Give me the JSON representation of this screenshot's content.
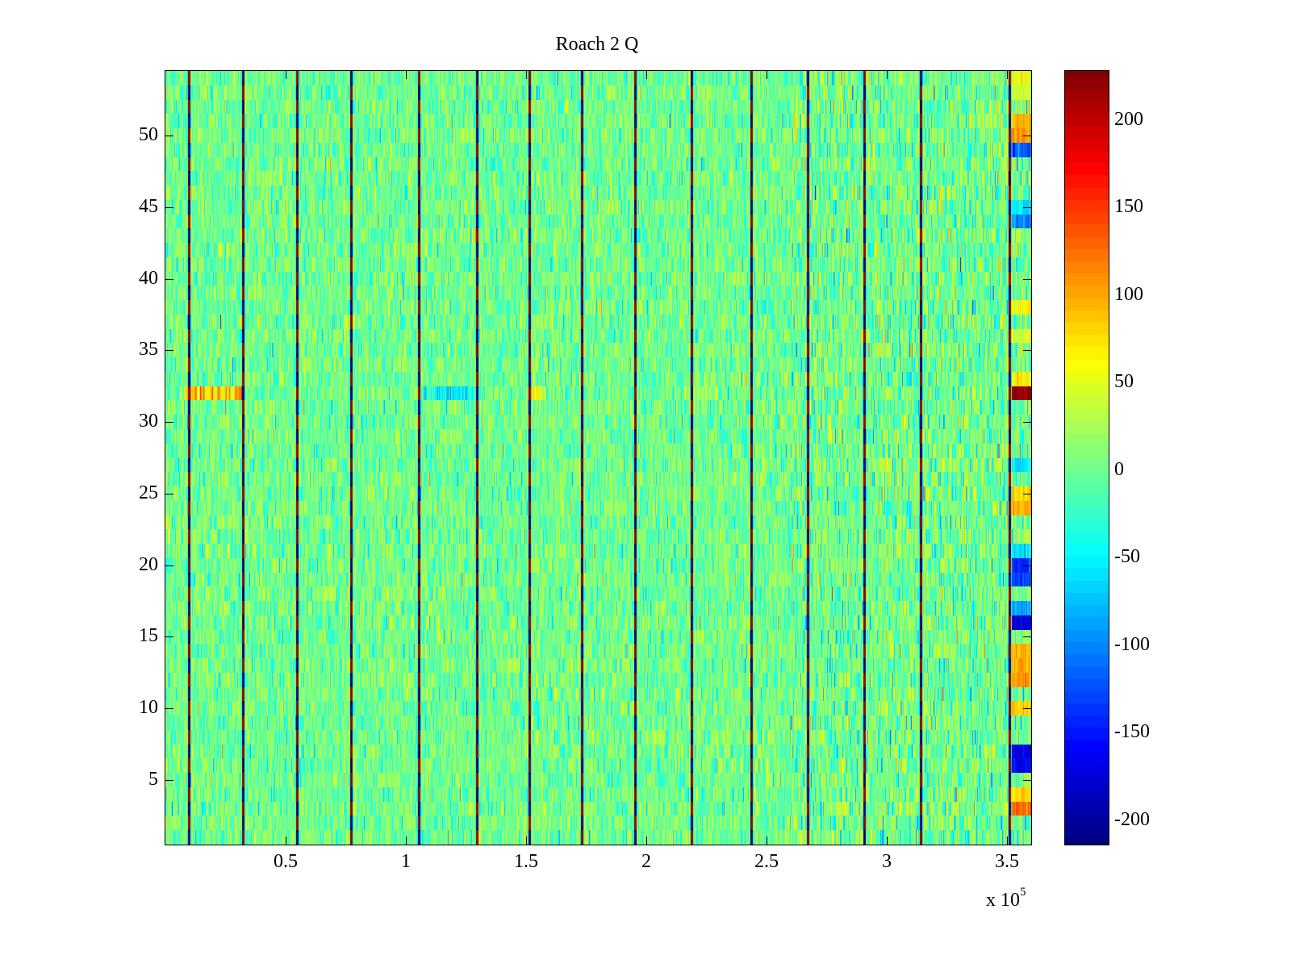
{
  "chart_data": {
    "type": "heatmap",
    "title": "Roach 2 Q",
    "xlabel": "",
    "ylabel": "",
    "x_multiplier_label": "x 10",
    "x_multiplier_exponent": "5",
    "xlim": [
      0,
      360000
    ],
    "ylim": [
      0.5,
      54.5
    ],
    "rows": 54,
    "columns": 1073,
    "x_ticks": [
      50000,
      100000,
      150000,
      200000,
      250000,
      300000,
      350000
    ],
    "x_tick_labels": [
      "0.5",
      "1",
      "1.5",
      "2",
      "2.5",
      "3",
      "3.5"
    ],
    "y_ticks": [
      5,
      10,
      15,
      20,
      25,
      30,
      35,
      40,
      45,
      50
    ],
    "y_tick_labels": [
      "5",
      "10",
      "15",
      "20",
      "25",
      "30",
      "35",
      "40",
      "45",
      "50"
    ],
    "colorbar": {
      "colormap": "jet",
      "levels": 64,
      "clim": [
        -214,
        228
      ],
      "ticks": [
        -200,
        -150,
        -100,
        -50,
        0,
        50,
        100,
        150,
        200
      ],
      "tick_labels": [
        "-200",
        "-150",
        "-100",
        "-50",
        "0",
        "50",
        "100",
        "150",
        "200"
      ]
    },
    "background_noise": {
      "mean": 0,
      "std": 28
    },
    "stripes": {
      "x": [
        9700,
        32200,
        54700,
        77200,
        105400,
        129500,
        151400,
        173200,
        195300,
        218800,
        243600,
        267100,
        290600,
        314100,
        351000
      ],
      "values_alternating_by_row": [
        220,
        -214
      ]
    },
    "row_features": [
      {
        "row": 32,
        "x_range": [
          8000,
          32000
        ],
        "value": 110
      },
      {
        "row": 32,
        "x_range": [
          105000,
          129000
        ],
        "value": -60
      },
      {
        "row": 32,
        "x_range": [
          151000,
          158000
        ],
        "value": 70
      }
    ],
    "tail_block": {
      "x_range": [
        352000,
        360000
      ],
      "row_values": {
        "3": 130,
        "4": 80,
        "6": -160,
        "7": -170,
        "10": 90,
        "12": 110,
        "13": 100,
        "14": 95,
        "16": -175,
        "17": -90,
        "19": -130,
        "20": -140,
        "21": -60,
        "24": 100,
        "25": 80,
        "27": -60,
        "32": 228,
        "33": 70,
        "36": 40,
        "38": 60,
        "44": -100,
        "45": -60,
        "49": -120,
        "50": 110,
        "51": 100,
        "53": 40,
        "54": 50
      }
    }
  }
}
